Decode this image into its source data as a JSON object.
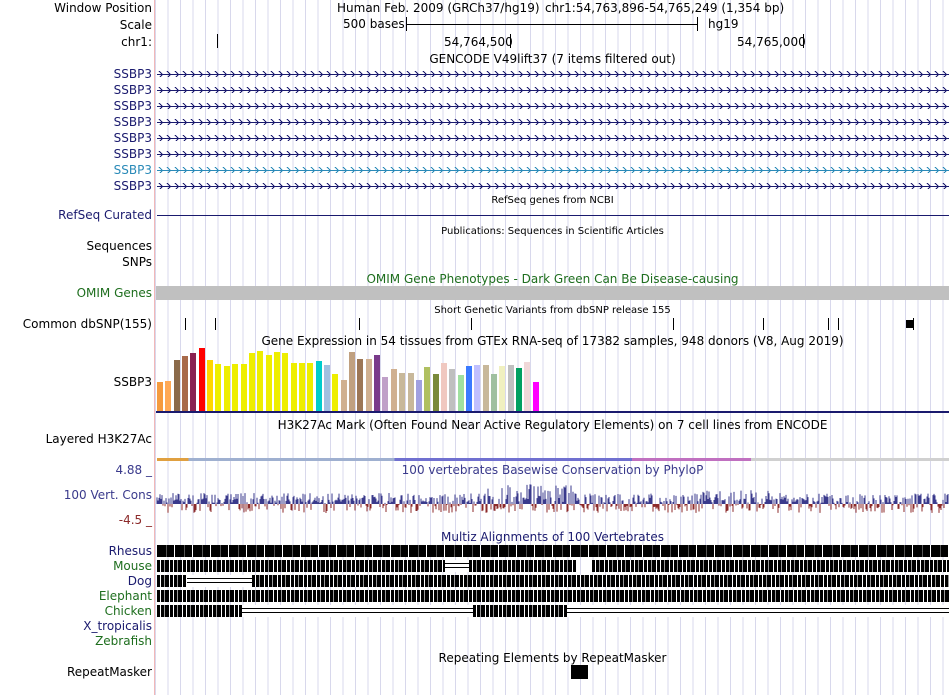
{
  "header": {
    "window_position_label": "Window Position",
    "assembly": "Human Feb. 2009 (GRCh37/hg19)",
    "position": "chr1:54,763,896-54,765,249 (1,354 bp)",
    "scale_label": "Scale",
    "scale_bases": "500 bases",
    "scale_db": "hg19",
    "chrom_label": "chr1:",
    "coord_1": "54,764,500",
    "coord_2": "54,765,000"
  },
  "tracks": {
    "gencode": {
      "title": "GENCODE V49lift37 (7 items filtered out)",
      "items": [
        "SSBP3",
        "SSBP3",
        "SSBP3",
        "SSBP3",
        "SSBP3",
        "SSBP3",
        "SSBP3",
        "SSBP3"
      ],
      "highlight_index": 6,
      "color": "#1a1a6e",
      "highlight_color": "#2a8ab8"
    },
    "refseq": {
      "label": "RefSeq Curated",
      "title": "RefSeq genes from NCBI",
      "color": "#1a1a6e"
    },
    "publications": {
      "label": "Sequences",
      "title": "Publications: Sequences in Scientific Articles"
    },
    "snps": {
      "label": "SNPs"
    },
    "omim": {
      "label": "OMIM Genes",
      "title": "OMIM Gene Phenotypes - Dark Green Can Be Disease-causing",
      "color": "#1e6e1e"
    },
    "dbsnp": {
      "label": "Common dbSNP(155)",
      "title": "Short Genetic Variants from dbSNP release 155"
    },
    "gtex": {
      "label": "SSBP3",
      "title": "Gene Expression in 54 tissues from GTEx RNA-seq of 17382 samples, 948 donors (V8, Aug 2019)"
    },
    "h3k27ac": {
      "label": "Layered H3K27Ac",
      "title": "H3K27Ac Mark (Often Found Near Active Regulatory Elements) on 7 cell lines from ENCODE"
    },
    "phylop": {
      "label": "100 Vert. Cons",
      "title": "100 vertebrates Basewise Conservation by PhyloP",
      "max": "4.88 _",
      "min": "-4.5 _",
      "color": "#3a3a8c"
    },
    "multiz": {
      "title": "Multiz Alignments of 100 Vertebrates",
      "species": [
        {
          "name": "Rhesus",
          "color": "#1a1a6e"
        },
        {
          "name": "Mouse",
          "color": "#1e6e1e"
        },
        {
          "name": "Dog",
          "color": "#1a1a6e"
        },
        {
          "name": "Elephant",
          "color": "#1e6e1e"
        },
        {
          "name": "Chicken",
          "color": "#1e6e1e"
        },
        {
          "name": "X_tropicalis",
          "color": "#1a1a6e"
        },
        {
          "name": "Zebrafish",
          "color": "#1e6e1e"
        }
      ]
    },
    "repeatmasker": {
      "label": "RepeatMasker",
      "title": "Repeating Elements by RepeatMasker"
    }
  }
}
